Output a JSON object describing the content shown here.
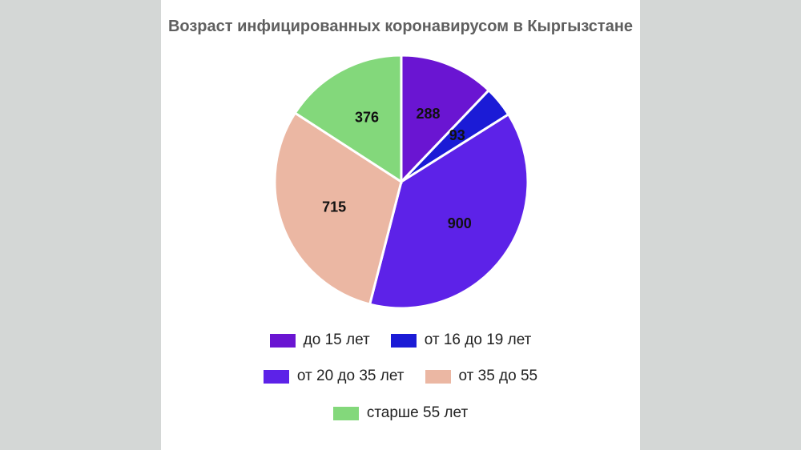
{
  "chart_data": {
    "type": "pie",
    "title": "Возраст инфицированных коронавирусом в Кыргызстане",
    "categories": [
      "до 15 лет",
      "от 16 до 19 лет",
      "от 20 до 35 лет",
      "от 35 до 55",
      "старше 55 лет"
    ],
    "values": [
      288,
      93,
      900,
      715,
      376
    ],
    "colors": [
      "#6a15d2",
      "#1b1bd6",
      "#5d22e8",
      "#ebb7a3",
      "#83d87b"
    ],
    "legend_position": "bottom"
  }
}
